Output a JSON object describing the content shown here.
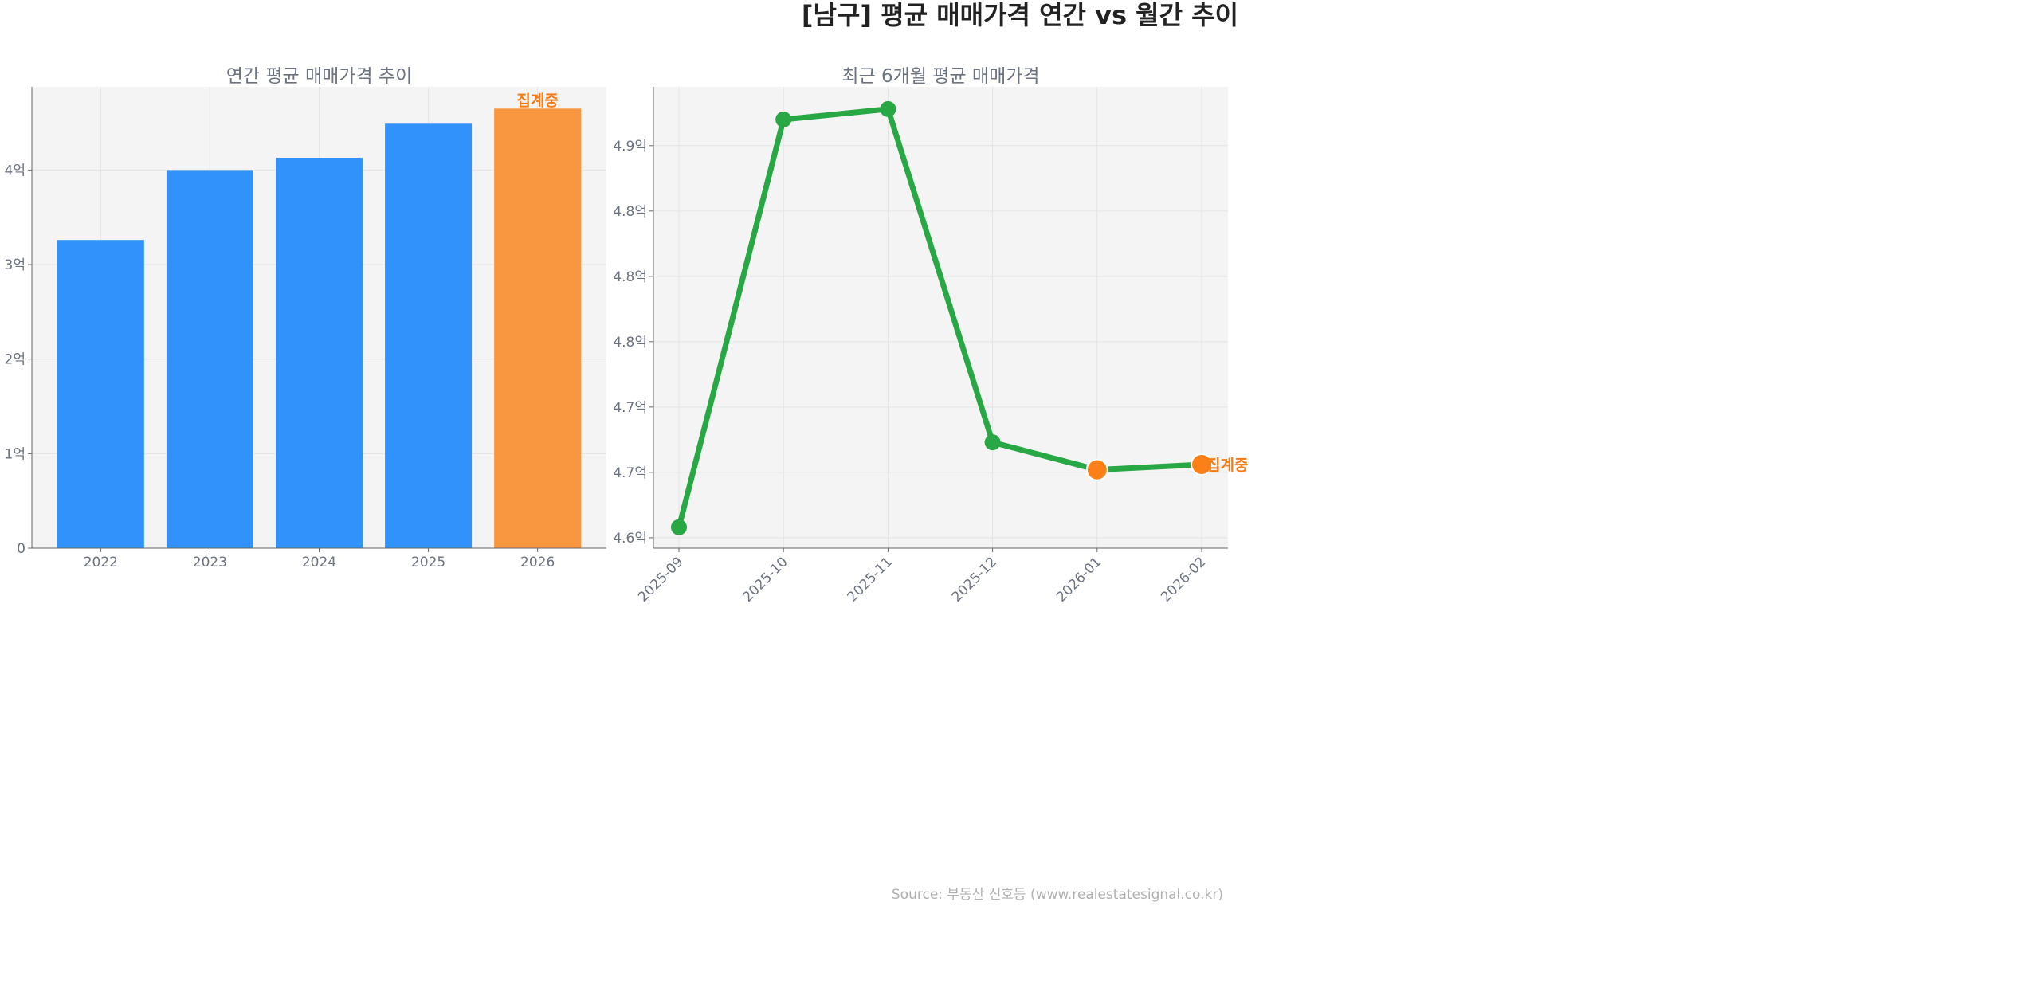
{
  "title": "[남구] 평균 매매가격 연간 vs 월간 추이",
  "source": "Source: 부동산 신호등 (www.realestatesignal.co.kr)",
  "chart_data": [
    {
      "type": "bar",
      "title": "연간 평균 매매가격 추이",
      "categories": [
        "2022",
        "2023",
        "2024",
        "2025",
        "2026"
      ],
      "values": [
        3.26,
        4.0,
        4.13,
        4.49,
        4.65
      ],
      "unit": "억",
      "ylim": [
        0,
        4.88
      ],
      "yticks": [
        0,
        1,
        2,
        3,
        4
      ],
      "ytick_labels": [
        "0",
        "1억",
        "2억",
        "3억",
        "4억"
      ],
      "colors": [
        "#3092fa",
        "#3092fa",
        "#3092fa",
        "#3092fa",
        "#f99640"
      ],
      "annotation": {
        "category": "2026",
        "text": "집계중",
        "color": "#f57c14"
      },
      "grid": true
    },
    {
      "type": "line",
      "title": "최근 6개월 평균 매매가격",
      "x": [
        "2025-09",
        "2025-10",
        "2025-11",
        "2025-12",
        "2026-01",
        "2026-02"
      ],
      "values": [
        4.608,
        4.92,
        4.928,
        4.673,
        4.652,
        4.656
      ],
      "unit": "억",
      "ylim": [
        4.592,
        4.945
      ],
      "yticks": [
        4.6,
        4.65,
        4.7,
        4.75,
        4.8,
        4.85,
        4.9
      ],
      "ytick_labels": [
        "4.6억",
        "4.7억",
        "4.7억",
        "4.8억",
        "4.8억",
        "4.8억",
        "4.9억"
      ],
      "line_color": "#28a745",
      "highlight_color": "#fd7f17",
      "highlight_points": [
        "2026-01",
        "2026-02"
      ],
      "annotation": {
        "x": "2026-02",
        "text": "집계중",
        "color": "#f57c14"
      },
      "grid": true
    }
  ]
}
